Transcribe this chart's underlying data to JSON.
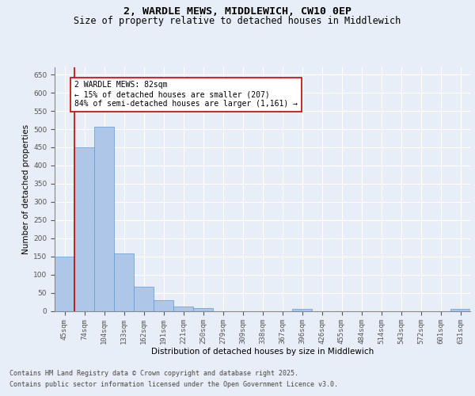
{
  "title_line1": "2, WARDLE MEWS, MIDDLEWICH, CW10 0EP",
  "title_line2": "Size of property relative to detached houses in Middlewich",
  "xlabel": "Distribution of detached houses by size in Middlewich",
  "ylabel": "Number of detached properties",
  "categories": [
    "45sqm",
    "74sqm",
    "104sqm",
    "133sqm",
    "162sqm",
    "191sqm",
    "221sqm",
    "250sqm",
    "279sqm",
    "309sqm",
    "338sqm",
    "367sqm",
    "396sqm",
    "426sqm",
    "455sqm",
    "484sqm",
    "514sqm",
    "543sqm",
    "572sqm",
    "601sqm",
    "631sqm"
  ],
  "values": [
    150,
    450,
    507,
    158,
    67,
    30,
    13,
    8,
    0,
    0,
    0,
    0,
    5,
    0,
    0,
    0,
    0,
    0,
    0,
    0,
    5
  ],
  "bar_color": "#aec6e8",
  "bar_edge_color": "#5b9bd5",
  "vline_color": "#cc0000",
  "vline_x_index": 1,
  "annotation_text": "2 WARDLE MEWS: 82sqm\n← 15% of detached houses are smaller (207)\n84% of semi-detached houses are larger (1,161) →",
  "annotation_box_color": "#ffffff",
  "annotation_box_edge": "#cc0000",
  "ylim": [
    0,
    670
  ],
  "yticks": [
    0,
    50,
    100,
    150,
    200,
    250,
    300,
    350,
    400,
    450,
    500,
    550,
    600,
    650
  ],
  "bg_color": "#e8eef7",
  "plot_bg_color": "#e8eef7",
  "footer_line1": "Contains HM Land Registry data © Crown copyright and database right 2025.",
  "footer_line2": "Contains public sector information licensed under the Open Government Licence v3.0.",
  "title_fontsize": 9.5,
  "subtitle_fontsize": 8.5,
  "axis_label_fontsize": 7.5,
  "tick_fontsize": 6.5,
  "annotation_fontsize": 7,
  "footer_fontsize": 6
}
